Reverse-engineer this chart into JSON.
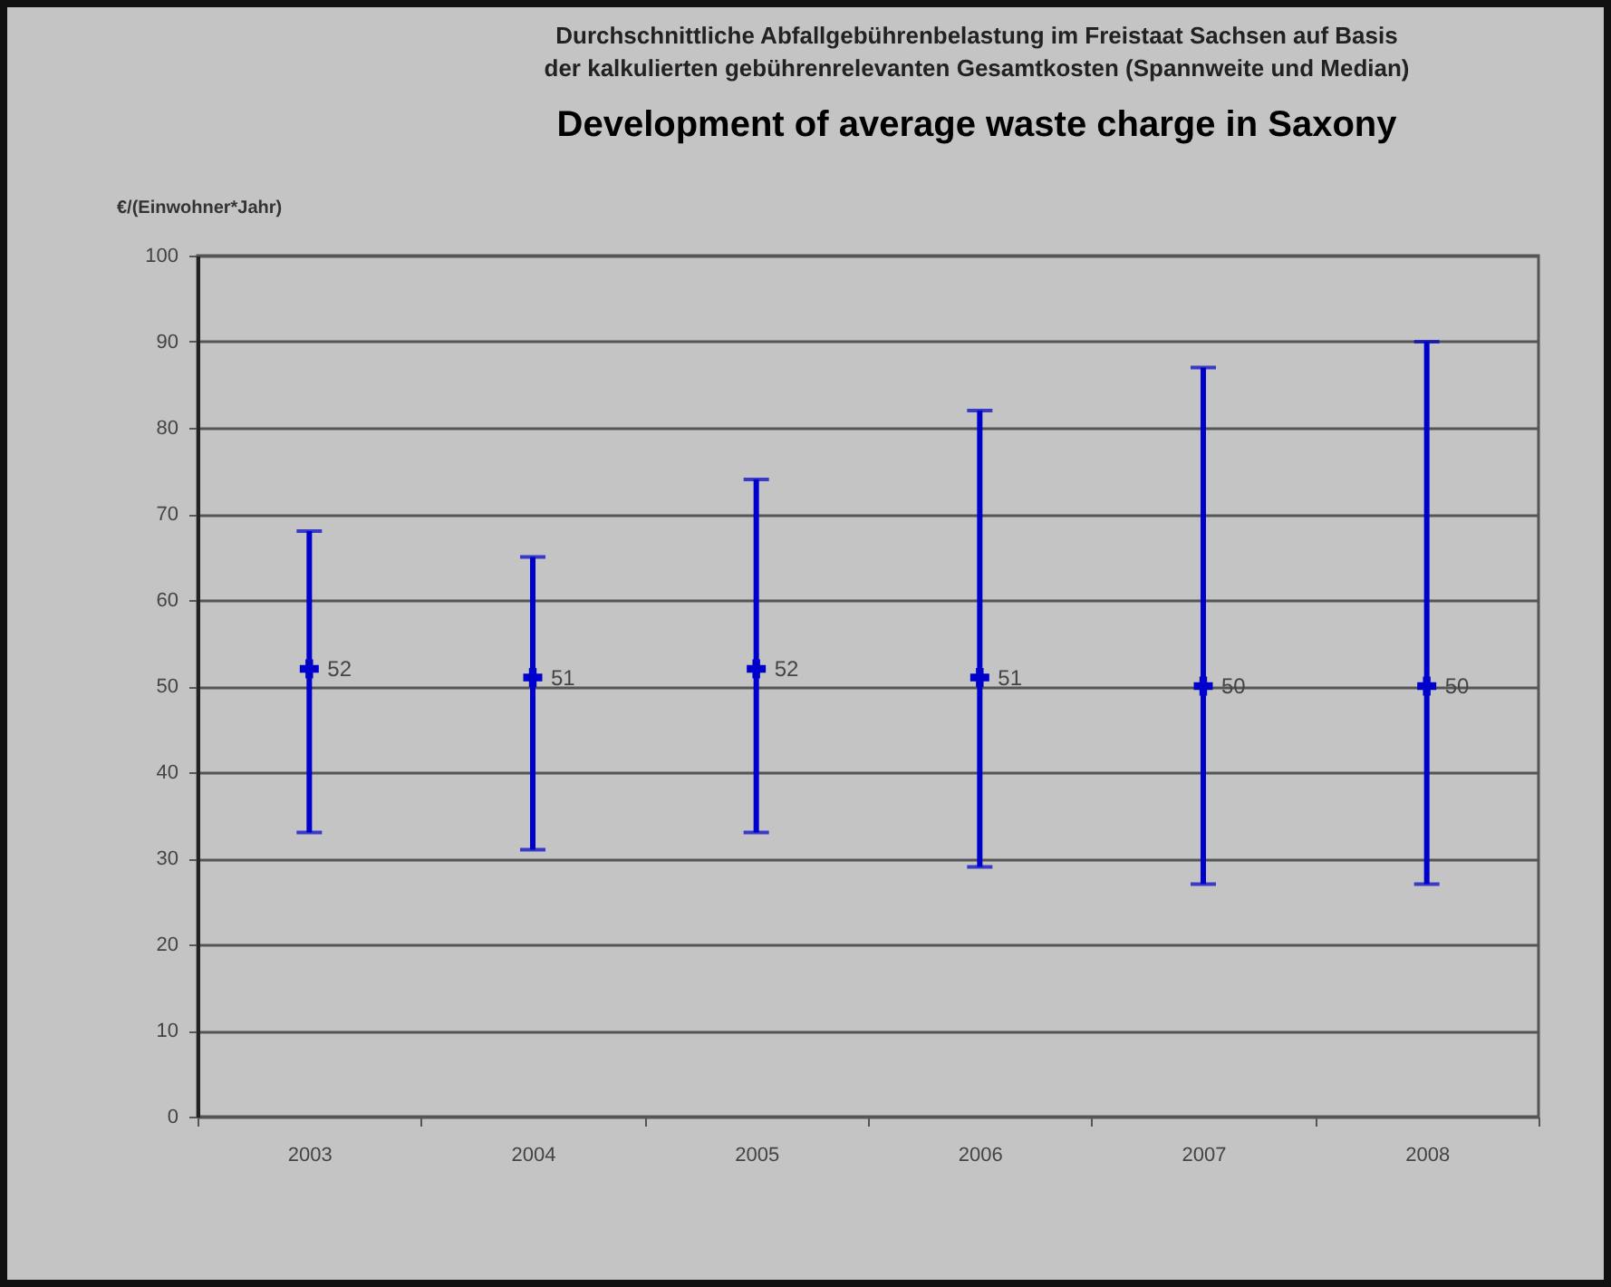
{
  "chart_data": {
    "type": "scatter",
    "title": "Durchschnittliche Abfallgebührenbelastung im Freistaat Sachsen auf Basis der kalkulierten gebührenrelevanten Gesamtkosten (Spannweite und Median)",
    "subtitle": "Development of average waste charge in Saxony",
    "ylabel": "€/(Einwohner*Jahr)",
    "categories": [
      "2003",
      "2004",
      "2005",
      "2006",
      "2007",
      "2008"
    ],
    "series": [
      {
        "color": "#0000cc",
        "values": [
          52,
          51,
          52,
          51,
          50,
          50
        ],
        "errors": [
          [
            33,
            68
          ],
          [
            31,
            65
          ],
          [
            33,
            74
          ],
          [
            29,
            82
          ],
          [
            27,
            87
          ],
          [
            27,
            90
          ]
        ]
      }
    ],
    "ylim": [
      0,
      100
    ],
    "yticks": [
      0,
      10,
      20,
      30,
      40,
      50,
      60,
      70,
      80,
      90,
      100
    ],
    "grid": "y",
    "marker": "cross",
    "data_labels": true
  }
}
